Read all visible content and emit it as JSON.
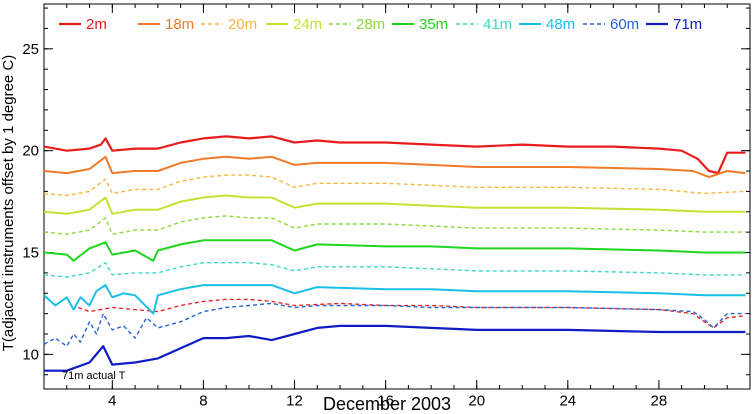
{
  "chart_data": {
    "type": "line",
    "title": "",
    "xlabel": "December 2003",
    "ylabel": "T(adjacent instruments offset by 1 degree C)",
    "xlim": [
      1,
      32
    ],
    "ylim": [
      8.3,
      27.2
    ],
    "x_ticks": [
      4,
      8,
      12,
      16,
      20,
      24,
      28
    ],
    "y_ticks": [
      10,
      15,
      20,
      25
    ],
    "x_tick_labels": [
      "4",
      "8",
      "12",
      "16",
      "20",
      "24",
      "28"
    ],
    "y_tick_labels": [
      "10",
      "15",
      "20",
      "25"
    ],
    "grid": false,
    "legend_position": "top",
    "annotation": "71m actual T",
    "series": [
      {
        "name": "2m",
        "color": "#e81c1c",
        "dash": "solid",
        "width": 2.2,
        "points": [
          [
            1,
            20.2
          ],
          [
            2,
            20.0
          ],
          [
            3,
            20.1
          ],
          [
            3.5,
            20.3
          ],
          [
            3.7,
            20.6
          ],
          [
            4,
            20.0
          ],
          [
            5,
            20.1
          ],
          [
            6,
            20.1
          ],
          [
            7,
            20.4
          ],
          [
            8,
            20.6
          ],
          [
            9,
            20.7
          ],
          [
            10,
            20.6
          ],
          [
            11,
            20.7
          ],
          [
            12,
            20.4
          ],
          [
            13,
            20.5
          ],
          [
            14,
            20.4
          ],
          [
            16,
            20.4
          ],
          [
            18,
            20.3
          ],
          [
            20,
            20.2
          ],
          [
            22,
            20.3
          ],
          [
            24,
            20.2
          ],
          [
            26,
            20.2
          ],
          [
            28,
            20.1
          ],
          [
            29,
            20.0
          ],
          [
            29.7,
            19.6
          ],
          [
            30.2,
            19.0
          ],
          [
            30.6,
            18.9
          ],
          [
            31,
            19.9
          ],
          [
            31.8,
            19.9
          ]
        ]
      },
      {
        "name": "18m",
        "color": "#f07a28",
        "dash": "solid",
        "width": 2.0,
        "points": [
          [
            1,
            19.0
          ],
          [
            2,
            18.9
          ],
          [
            3,
            19.1
          ],
          [
            3.7,
            19.7
          ],
          [
            4,
            18.9
          ],
          [
            5,
            19.0
          ],
          [
            6,
            19.0
          ],
          [
            7,
            19.4
          ],
          [
            8,
            19.6
          ],
          [
            9,
            19.7
          ],
          [
            10,
            19.6
          ],
          [
            11,
            19.7
          ],
          [
            12,
            19.3
          ],
          [
            13,
            19.4
          ],
          [
            16,
            19.4
          ],
          [
            18,
            19.3
          ],
          [
            20,
            19.2
          ],
          [
            24,
            19.2
          ],
          [
            28,
            19.1
          ],
          [
            29.5,
            19.0
          ],
          [
            30.2,
            18.7
          ],
          [
            31,
            19.0
          ],
          [
            31.8,
            18.9
          ]
        ]
      },
      {
        "name": "20m",
        "color": "#f5b83c",
        "dash": "dashed",
        "width": 1.4,
        "points": [
          [
            1,
            17.9
          ],
          [
            2,
            17.8
          ],
          [
            3,
            18.0
          ],
          [
            3.7,
            18.6
          ],
          [
            4,
            17.9
          ],
          [
            5,
            18.1
          ],
          [
            6,
            18.1
          ],
          [
            7,
            18.5
          ],
          [
            8,
            18.7
          ],
          [
            9,
            18.8
          ],
          [
            10,
            18.8
          ],
          [
            11,
            18.7
          ],
          [
            12,
            18.2
          ],
          [
            13,
            18.4
          ],
          [
            16,
            18.4
          ],
          [
            18,
            18.3
          ],
          [
            20,
            18.2
          ],
          [
            24,
            18.2
          ],
          [
            28,
            18.1
          ],
          [
            30,
            17.9
          ],
          [
            31.8,
            18.0
          ]
        ]
      },
      {
        "name": "24m",
        "color": "#c6e230",
        "dash": "solid",
        "width": 2.0,
        "points": [
          [
            1,
            17.0
          ],
          [
            2,
            16.9
          ],
          [
            3,
            17.1
          ],
          [
            3.7,
            17.7
          ],
          [
            4,
            16.9
          ],
          [
            5,
            17.1
          ],
          [
            6,
            17.1
          ],
          [
            7,
            17.5
          ],
          [
            8,
            17.7
          ],
          [
            9,
            17.8
          ],
          [
            10,
            17.7
          ],
          [
            11,
            17.7
          ],
          [
            12,
            17.2
          ],
          [
            13,
            17.4
          ],
          [
            16,
            17.4
          ],
          [
            18,
            17.3
          ],
          [
            20,
            17.2
          ],
          [
            24,
            17.2
          ],
          [
            28,
            17.1
          ],
          [
            30,
            17.0
          ],
          [
            31.8,
            17.0
          ]
        ]
      },
      {
        "name": "28m",
        "color": "#8ed838",
        "dash": "dashed",
        "width": 1.4,
        "points": [
          [
            1,
            16.0
          ],
          [
            2,
            15.9
          ],
          [
            3,
            16.1
          ],
          [
            3.7,
            16.7
          ],
          [
            4,
            15.9
          ],
          [
            5,
            16.1
          ],
          [
            6,
            16.1
          ],
          [
            7,
            16.5
          ],
          [
            8,
            16.7
          ],
          [
            9,
            16.8
          ],
          [
            10,
            16.7
          ],
          [
            11,
            16.7
          ],
          [
            12,
            16.2
          ],
          [
            13,
            16.4
          ],
          [
            16,
            16.4
          ],
          [
            18,
            16.3
          ],
          [
            20,
            16.2
          ],
          [
            24,
            16.2
          ],
          [
            28,
            16.1
          ],
          [
            30,
            16.0
          ],
          [
            31.8,
            16.0
          ]
        ]
      },
      {
        "name": "35m",
        "color": "#1ed61e",
        "dash": "solid",
        "width": 2.0,
        "points": [
          [
            1,
            15.0
          ],
          [
            2,
            14.9
          ],
          [
            2.3,
            14.6
          ],
          [
            3,
            15.2
          ],
          [
            3.7,
            15.5
          ],
          [
            4,
            14.9
          ],
          [
            5,
            15.1
          ],
          [
            5.8,
            14.6
          ],
          [
            6,
            15.1
          ],
          [
            7,
            15.4
          ],
          [
            8,
            15.6
          ],
          [
            9,
            15.6
          ],
          [
            10,
            15.6
          ],
          [
            11,
            15.6
          ],
          [
            12,
            15.1
          ],
          [
            13,
            15.4
          ],
          [
            16,
            15.3
          ],
          [
            18,
            15.3
          ],
          [
            20,
            15.2
          ],
          [
            24,
            15.2
          ],
          [
            28,
            15.1
          ],
          [
            30,
            15.0
          ],
          [
            31.8,
            15.0
          ]
        ]
      },
      {
        "name": "41m",
        "color": "#3cd8c0",
        "dash": "dashed",
        "width": 1.4,
        "points": [
          [
            1,
            13.9
          ],
          [
            2,
            13.8
          ],
          [
            3,
            14.0
          ],
          [
            3.7,
            14.5
          ],
          [
            4,
            13.9
          ],
          [
            5,
            14.0
          ],
          [
            6,
            14.0
          ],
          [
            7,
            14.3
          ],
          [
            8,
            14.5
          ],
          [
            9,
            14.5
          ],
          [
            10,
            14.5
          ],
          [
            11,
            14.4
          ],
          [
            12,
            14.1
          ],
          [
            13,
            14.3
          ],
          [
            16,
            14.3
          ],
          [
            18,
            14.2
          ],
          [
            20,
            14.1
          ],
          [
            24,
            14.1
          ],
          [
            28,
            14.0
          ],
          [
            30,
            13.9
          ],
          [
            31.8,
            13.9
          ]
        ]
      },
      {
        "name": "48m",
        "color": "#18c0e8",
        "dash": "solid",
        "width": 2.0,
        "points": [
          [
            1,
            12.9
          ],
          [
            1.5,
            12.4
          ],
          [
            2,
            12.8
          ],
          [
            2.3,
            12.2
          ],
          [
            2.6,
            12.8
          ],
          [
            3,
            12.4
          ],
          [
            3.3,
            13.1
          ],
          [
            3.7,
            13.4
          ],
          [
            4,
            12.8
          ],
          [
            4.5,
            13.0
          ],
          [
            5,
            12.9
          ],
          [
            5.8,
            12.0
          ],
          [
            6,
            12.9
          ],
          [
            7,
            13.2
          ],
          [
            8,
            13.4
          ],
          [
            9,
            13.4
          ],
          [
            10,
            13.4
          ],
          [
            11,
            13.4
          ],
          [
            12,
            13.0
          ],
          [
            13,
            13.3
          ],
          [
            16,
            13.2
          ],
          [
            18,
            13.2
          ],
          [
            20,
            13.1
          ],
          [
            24,
            13.1
          ],
          [
            28,
            13.0
          ],
          [
            30,
            12.9
          ],
          [
            31.8,
            12.9
          ]
        ]
      },
      {
        "name": "60m",
        "color": "#2d62d8",
        "dash": "dashed",
        "width": 1.4,
        "points": [
          [
            1,
            10.5
          ],
          [
            1.5,
            10.8
          ],
          [
            2,
            10.4
          ],
          [
            2.3,
            11.0
          ],
          [
            2.6,
            10.6
          ],
          [
            3,
            11.6
          ],
          [
            3.3,
            11.0
          ],
          [
            3.6,
            12.0
          ],
          [
            4,
            11.2
          ],
          [
            4.5,
            11.4
          ],
          [
            5,
            10.8
          ],
          [
            5.5,
            11.8
          ],
          [
            6,
            11.3
          ],
          [
            7,
            11.6
          ],
          [
            8,
            12.1
          ],
          [
            9,
            12.3
          ],
          [
            10,
            12.4
          ],
          [
            11,
            12.5
          ],
          [
            12,
            12.3
          ],
          [
            13,
            12.4
          ],
          [
            16,
            12.4
          ],
          [
            18,
            12.3
          ],
          [
            20,
            12.3
          ],
          [
            24,
            12.3
          ],
          [
            28,
            12.2
          ],
          [
            29.5,
            12.1
          ],
          [
            30,
            11.7
          ],
          [
            30.4,
            11.3
          ],
          [
            31,
            12.0
          ],
          [
            31.8,
            12.0
          ]
        ]
      },
      {
        "name": "71m",
        "color": "#0f1cc4",
        "dash": "solid",
        "width": 2.2,
        "points": [
          [
            1,
            9.2
          ],
          [
            2,
            9.2
          ],
          [
            3,
            9.6
          ],
          [
            3.6,
            10.4
          ],
          [
            4,
            9.5
          ],
          [
            5,
            9.6
          ],
          [
            6,
            9.8
          ],
          [
            7,
            10.3
          ],
          [
            8,
            10.8
          ],
          [
            9,
            10.8
          ],
          [
            10,
            10.9
          ],
          [
            11,
            10.7
          ],
          [
            12,
            11.0
          ],
          [
            13,
            11.3
          ],
          [
            14,
            11.4
          ],
          [
            16,
            11.4
          ],
          [
            18,
            11.3
          ],
          [
            20,
            11.2
          ],
          [
            24,
            11.2
          ],
          [
            28,
            11.1
          ],
          [
            30,
            11.1
          ],
          [
            31.8,
            11.1
          ]
        ]
      }
    ],
    "extra_lines": [
      {
        "color": "#e81c1c",
        "dash": "dashed",
        "width": 1.3,
        "points": [
          [
            2.5,
            12.3
          ],
          [
            3,
            12.1
          ],
          [
            4,
            12.3
          ],
          [
            5,
            12.2
          ],
          [
            6,
            12.1
          ],
          [
            7,
            12.4
          ],
          [
            8,
            12.6
          ],
          [
            9,
            12.7
          ],
          [
            10,
            12.7
          ],
          [
            11,
            12.6
          ],
          [
            12,
            12.4
          ],
          [
            14,
            12.5
          ],
          [
            16,
            12.4
          ],
          [
            18,
            12.4
          ],
          [
            20,
            12.3
          ],
          [
            24,
            12.3
          ],
          [
            28,
            12.2
          ],
          [
            29.5,
            12.0
          ],
          [
            30,
            11.6
          ],
          [
            30.4,
            11.3
          ],
          [
            31,
            11.8
          ],
          [
            31.8,
            11.9
          ]
        ]
      }
    ]
  }
}
